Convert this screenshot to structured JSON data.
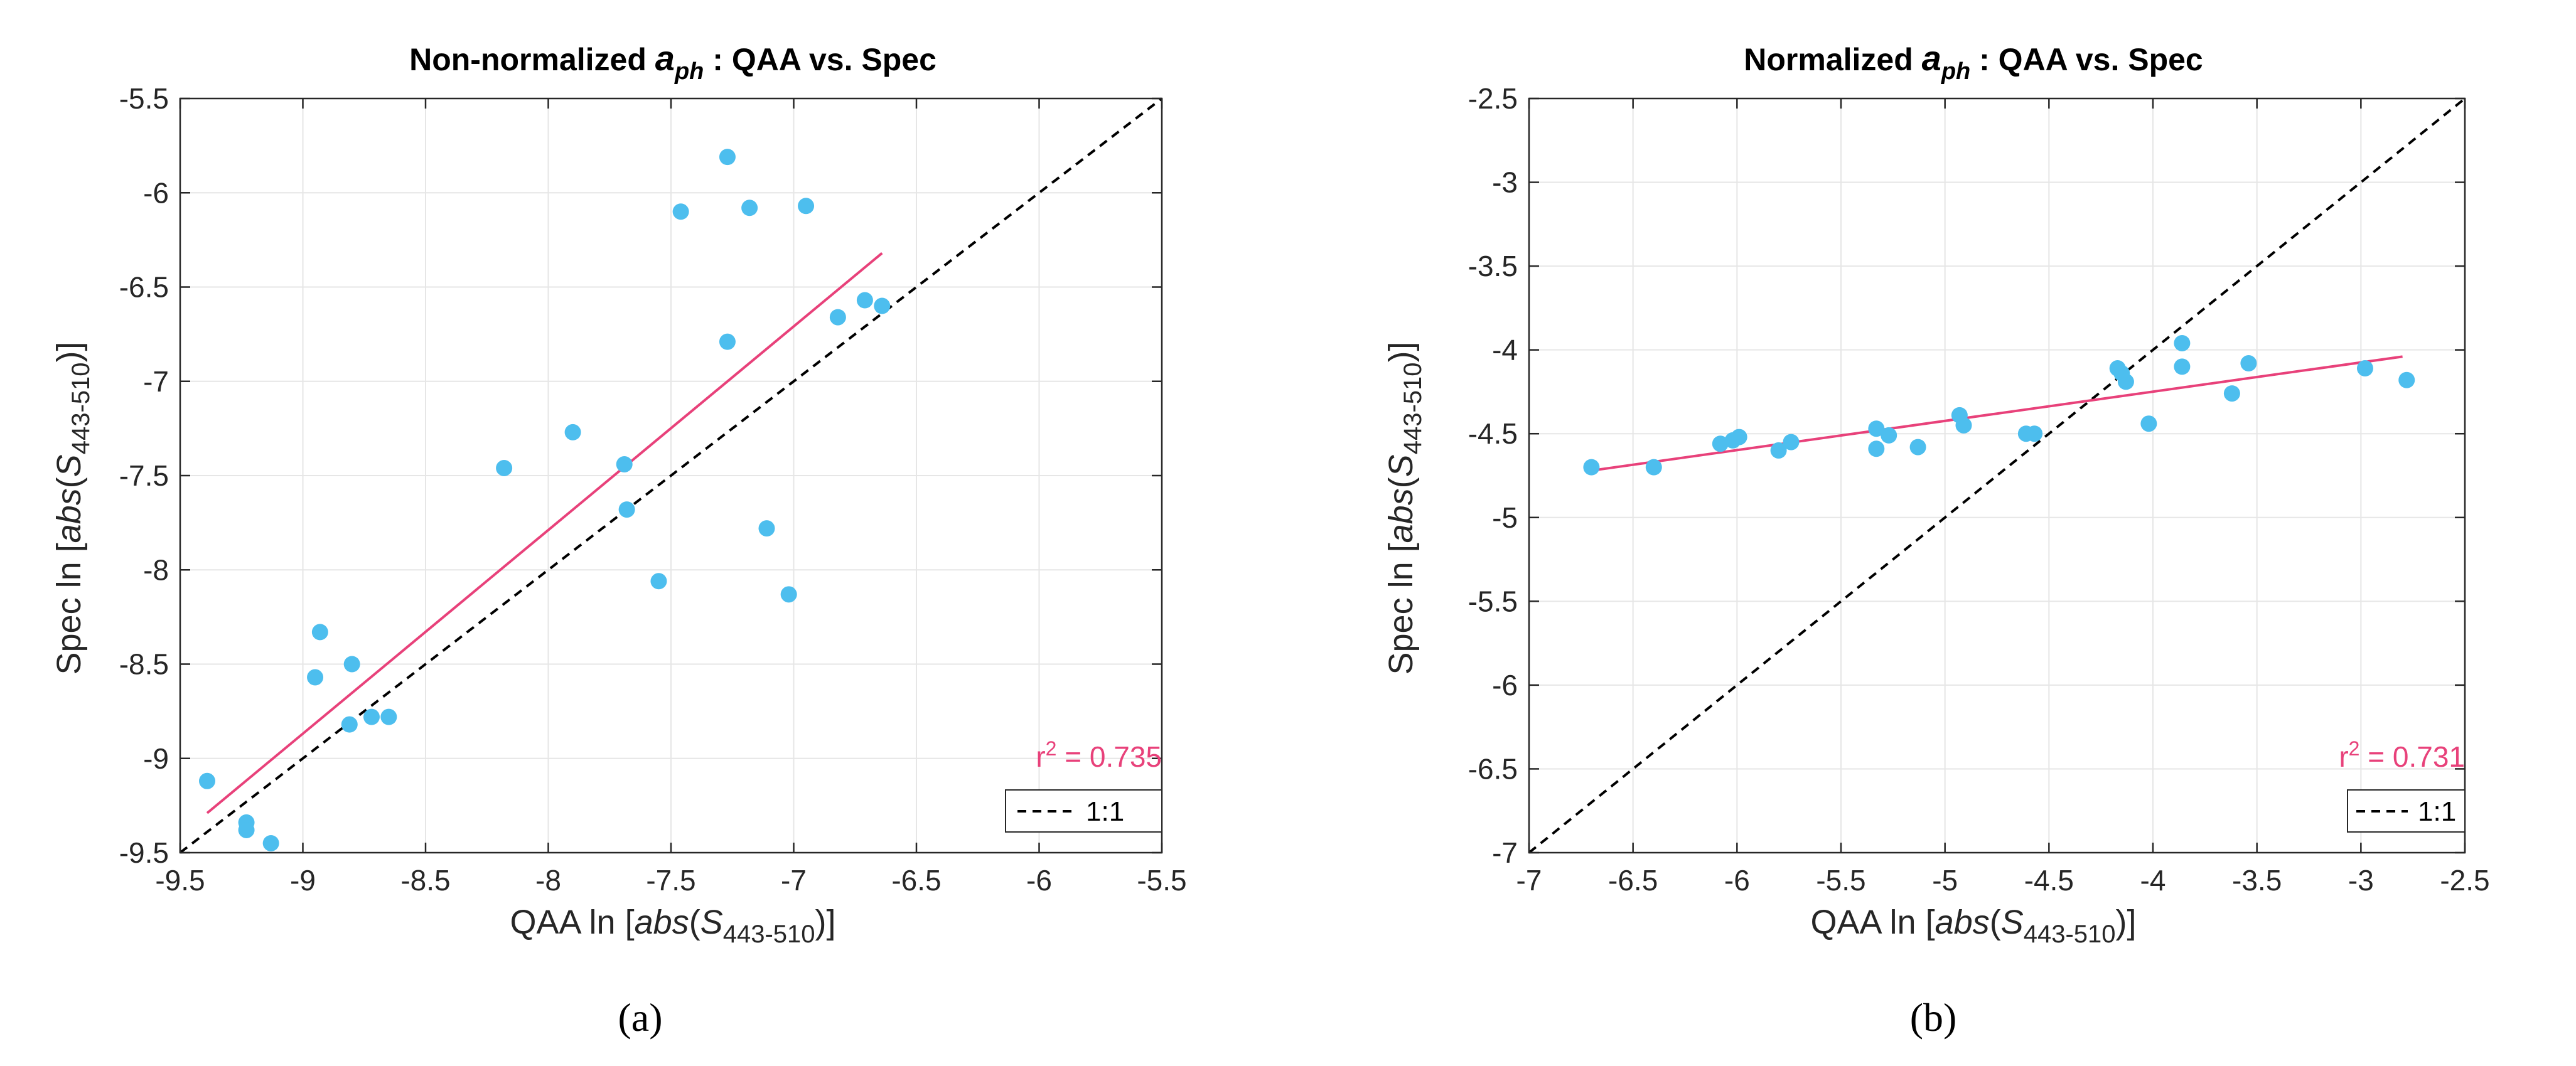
{
  "figure": {
    "colors": {
      "points": "#4DBEEE",
      "fit_line": "#E8417A",
      "identity_line": "#000000",
      "grid": "#E6E6E6",
      "axes": "#262626"
    }
  },
  "chart_data": [
    {
      "type": "scatter",
      "panel_label": "(a)",
      "title": "Non-normalized a_ph : QAA vs. Spec",
      "title_parts": {
        "pre": "Non-normalized ",
        "a": "a",
        "sub": "ph",
        "post": " : QAA vs. Spec"
      },
      "xlabel": "QAA ln [abs(S443-510)]",
      "xlabel_parts": {
        "pre": "QAA ln [",
        "italic": "abs",
        "mid": "(",
        "S": "S",
        "sub": "443-510",
        "post": ")]"
      },
      "ylabel": "Spec ln [abs(S443-510)]",
      "ylabel_parts": {
        "pre": "Spec ln [",
        "italic": "abs",
        "mid": "(",
        "S": "S",
        "sub": "443-510",
        "post": ")]"
      },
      "xlim": [
        -9.5,
        -5.5
      ],
      "ylim": [
        -9.5,
        -5.5
      ],
      "xticks": [
        -9.5,
        -9,
        -8.5,
        -8,
        -7.5,
        -7,
        -6.5,
        -6,
        -5.5
      ],
      "xtick_labels": [
        "-9.5",
        "-9",
        "-8.5",
        "-8",
        "-7.5",
        "-7",
        "-6.5",
        "-6",
        "-5.5"
      ],
      "yticks": [
        -9.5,
        -9,
        -8.5,
        -8,
        -7.5,
        -7,
        -6.5,
        -6,
        -5.5
      ],
      "ytick_labels": [
        "-9.5",
        "-9",
        "-8.5",
        "-8",
        "-7.5",
        "-7",
        "-6.5",
        "-6",
        "-5.5"
      ],
      "grid": true,
      "points": [
        [
          -9.39,
          -9.12
        ],
        [
          -9.23,
          -9.34
        ],
        [
          -9.23,
          -9.38
        ],
        [
          -9.13,
          -9.45
        ],
        [
          -8.95,
          -8.57
        ],
        [
          -8.93,
          -8.33
        ],
        [
          -8.81,
          -8.82
        ],
        [
          -8.8,
          -8.5
        ],
        [
          -8.72,
          -8.78
        ],
        [
          -8.65,
          -8.78
        ],
        [
          -8.18,
          -7.46
        ],
        [
          -7.9,
          -7.27
        ],
        [
          -7.69,
          -7.44
        ],
        [
          -7.68,
          -7.68
        ],
        [
          -7.55,
          -8.06
        ],
        [
          -7.46,
          -6.1
        ],
        [
          -7.27,
          -5.81
        ],
        [
          -7.27,
          -6.79
        ],
        [
          -7.18,
          -6.08
        ],
        [
          -7.11,
          -7.78
        ],
        [
          -7.02,
          -8.13
        ],
        [
          -6.95,
          -6.07
        ],
        [
          -6.82,
          -6.66
        ],
        [
          -6.71,
          -6.57
        ],
        [
          -6.64,
          -6.6
        ]
      ],
      "fit_line": {
        "x": [
          -9.39,
          -6.64
        ],
        "y": [
          -9.29,
          -6.32
        ]
      },
      "identity_line": {
        "x": [
          -9.5,
          -5.5
        ],
        "y": [
          -9.5,
          -5.5
        ]
      },
      "r2_prefix": "r",
      "r2_exp": "2",
      "r2_value": " = 0.735",
      "r2_text": "r2 = 0.735",
      "legend": {
        "label": "1:1",
        "placement": "bottom-right"
      }
    },
    {
      "type": "scatter",
      "panel_label": "(b)",
      "title": "Normalized a_ph : QAA vs. Spec",
      "title_parts": {
        "pre": "Normalized ",
        "a": "a",
        "sub": "ph",
        "post": " : QAA vs. Spec"
      },
      "xlabel": "QAA ln [abs(S443-510)]",
      "xlabel_parts": {
        "pre": "QAA ln [",
        "italic": "abs",
        "mid": "(",
        "S": "S",
        "sub": "443-510",
        "post": ")]"
      },
      "ylabel": "Spec ln [abs(S443-510)]",
      "ylabel_parts": {
        "pre": "Spec ln [",
        "italic": "abs",
        "mid": "(",
        "S": "S",
        "sub": "443-510",
        "post": ")]"
      },
      "xlim": [
        -7,
        -2.5
      ],
      "ylim": [
        -7,
        -2.5
      ],
      "xticks": [
        -7,
        -6.5,
        -6,
        -5.5,
        -5,
        -4.5,
        -4,
        -3.5,
        -3,
        -2.5
      ],
      "xtick_labels": [
        "-7",
        "-6.5",
        "-6",
        "-5.5",
        "-5",
        "-4.5",
        "-4",
        "-3.5",
        "-3",
        "-2.5"
      ],
      "yticks": [
        -7,
        -6.5,
        -6,
        -5.5,
        -5,
        -4.5,
        -4,
        -3.5,
        -3,
        -2.5
      ],
      "ytick_labels": [
        "-7",
        "-6.5",
        "-6",
        "-5.5",
        "-5",
        "-4.5",
        "-4",
        "-3.5",
        "-3",
        "-2.5"
      ],
      "grid": true,
      "points": [
        [
          -6.7,
          -4.7
        ],
        [
          -6.4,
          -4.7
        ],
        [
          -6.08,
          -4.56
        ],
        [
          -6.02,
          -4.54
        ],
        [
          -5.99,
          -4.52
        ],
        [
          -5.8,
          -4.6
        ],
        [
          -5.74,
          -4.55
        ],
        [
          -5.33,
          -4.47
        ],
        [
          -5.33,
          -4.59
        ],
        [
          -5.27,
          -4.51
        ],
        [
          -5.13,
          -4.58
        ],
        [
          -4.93,
          -4.39
        ],
        [
          -4.91,
          -4.45
        ],
        [
          -4.61,
          -4.5
        ],
        [
          -4.57,
          -4.5
        ],
        [
          -4.17,
          -4.11
        ],
        [
          -4.15,
          -4.14
        ],
        [
          -4.13,
          -4.19
        ],
        [
          -4.02,
          -4.44
        ],
        [
          -3.86,
          -3.96
        ],
        [
          -3.86,
          -4.1
        ],
        [
          -3.62,
          -4.26
        ],
        [
          -3.54,
          -4.08
        ],
        [
          -2.98,
          -4.11
        ],
        [
          -2.78,
          -4.18
        ]
      ],
      "fit_line": {
        "x": [
          -6.7,
          -2.8
        ],
        "y": [
          -4.72,
          -4.04
        ]
      },
      "identity_line": {
        "x": [
          -7,
          -2.5
        ],
        "y": [
          -7,
          -2.5
        ]
      },
      "r2_prefix": "r",
      "r2_exp": "2",
      "r2_value": " = 0.731",
      "r2_text": "r2 = 0.731",
      "legend": {
        "label": "1:1",
        "placement": "bottom-right"
      }
    }
  ]
}
